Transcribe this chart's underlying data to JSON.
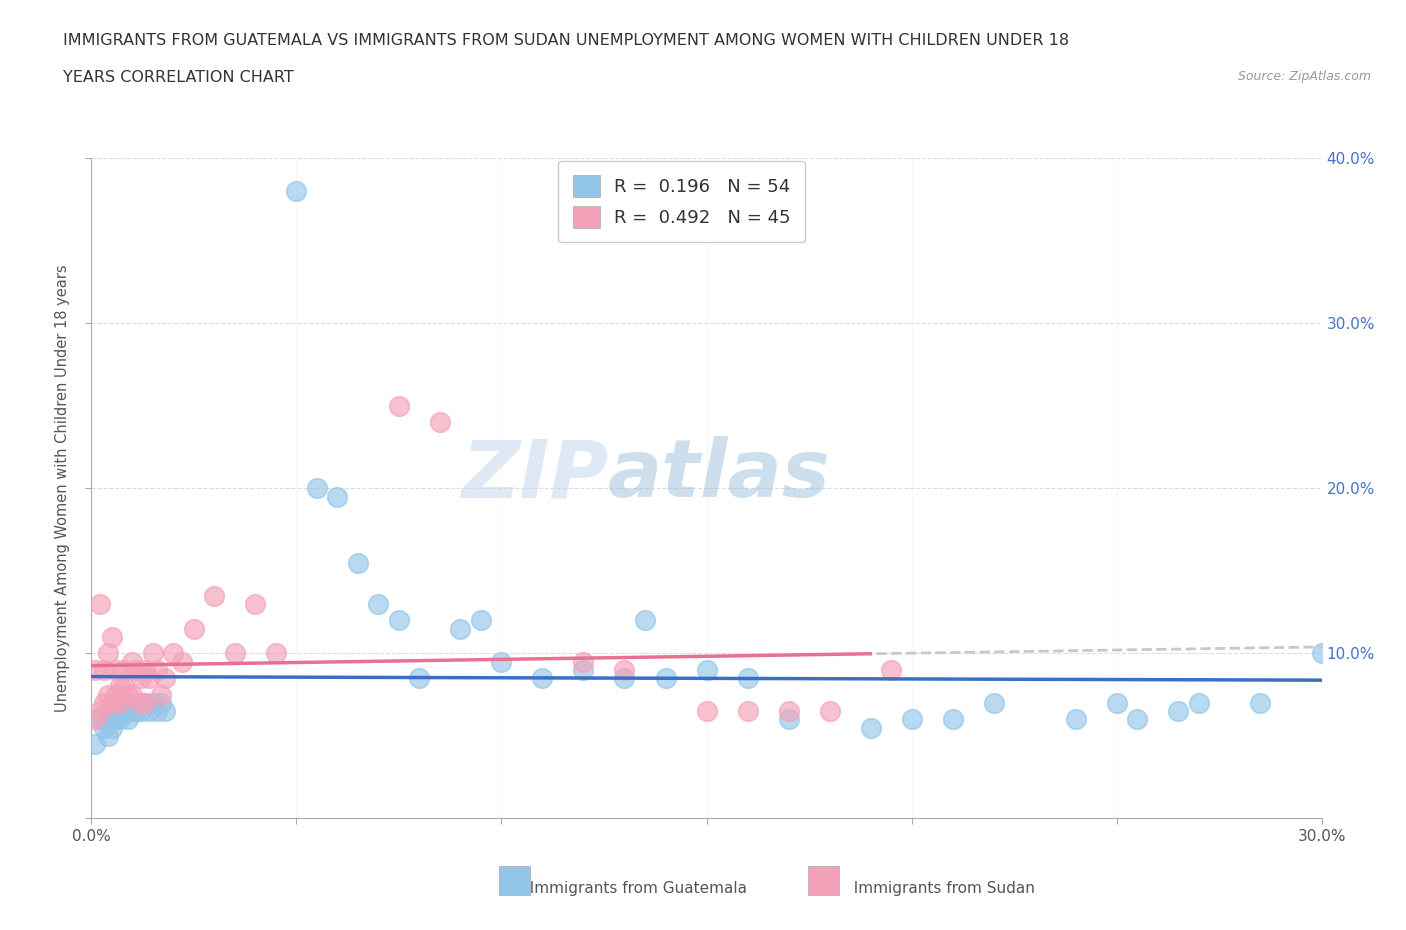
{
  "title_line1": "IMMIGRANTS FROM GUATEMALA VS IMMIGRANTS FROM SUDAN UNEMPLOYMENT AMONG WOMEN WITH CHILDREN UNDER 18",
  "title_line2": "YEARS CORRELATION CHART",
  "source": "Source: ZipAtlas.com",
  "ylabel": "Unemployment Among Women with Children Under 18 years",
  "xlim": [
    0.0,
    0.3
  ],
  "ylim": [
    0.0,
    0.4
  ],
  "xticks": [
    0.0,
    0.05,
    0.1,
    0.15,
    0.2,
    0.25,
    0.3
  ],
  "yticks": [
    0.0,
    0.1,
    0.2,
    0.3,
    0.4
  ],
  "R_guatemala": 0.196,
  "N_guatemala": 54,
  "R_sudan": 0.492,
  "N_sudan": 45,
  "color_guatemala": "#92C5E8",
  "color_sudan": "#F4A0B8",
  "line_color_guatemala": "#3A6FC4",
  "line_color_sudan": "#E87090",
  "line_color_sudan_dashed": "#C8C8C8",
  "watermark_text": "ZIPatlas",
  "guatemala_x": [
    0.001,
    0.002,
    0.003,
    0.004,
    0.004,
    0.005,
    0.005,
    0.006,
    0.006,
    0.007,
    0.007,
    0.008,
    0.008,
    0.009,
    0.009,
    0.01,
    0.01,
    0.011,
    0.012,
    0.013,
    0.014,
    0.015,
    0.016,
    0.017,
    0.018,
    0.05,
    0.055,
    0.06,
    0.065,
    0.07,
    0.075,
    0.08,
    0.09,
    0.095,
    0.1,
    0.11,
    0.12,
    0.13,
    0.135,
    0.14,
    0.15,
    0.16,
    0.17,
    0.19,
    0.2,
    0.21,
    0.22,
    0.24,
    0.25,
    0.255,
    0.265,
    0.27,
    0.285,
    0.3
  ],
  "guatemala_y": [
    0.045,
    0.06,
    0.055,
    0.065,
    0.05,
    0.06,
    0.055,
    0.065,
    0.06,
    0.065,
    0.06,
    0.065,
    0.07,
    0.065,
    0.06,
    0.07,
    0.065,
    0.065,
    0.065,
    0.07,
    0.065,
    0.07,
    0.065,
    0.07,
    0.065,
    0.38,
    0.2,
    0.195,
    0.155,
    0.13,
    0.12,
    0.085,
    0.115,
    0.12,
    0.095,
    0.085,
    0.09,
    0.085,
    0.12,
    0.085,
    0.09,
    0.085,
    0.06,
    0.055,
    0.06,
    0.06,
    0.07,
    0.06,
    0.07,
    0.06,
    0.065,
    0.07,
    0.07,
    0.1
  ],
  "sudan_x": [
    0.001,
    0.001,
    0.002,
    0.002,
    0.003,
    0.003,
    0.004,
    0.004,
    0.005,
    0.005,
    0.006,
    0.006,
    0.007,
    0.007,
    0.008,
    0.008,
    0.009,
    0.01,
    0.01,
    0.011,
    0.012,
    0.012,
    0.013,
    0.013,
    0.014,
    0.015,
    0.016,
    0.017,
    0.018,
    0.02,
    0.022,
    0.025,
    0.03,
    0.035,
    0.04,
    0.045,
    0.075,
    0.085,
    0.12,
    0.13,
    0.15,
    0.16,
    0.17,
    0.18,
    0.195
  ],
  "sudan_y": [
    0.06,
    0.09,
    0.065,
    0.13,
    0.07,
    0.09,
    0.075,
    0.1,
    0.07,
    0.11,
    0.075,
    0.09,
    0.08,
    0.07,
    0.08,
    0.09,
    0.075,
    0.095,
    0.075,
    0.09,
    0.085,
    0.07,
    0.09,
    0.07,
    0.085,
    0.1,
    0.09,
    0.075,
    0.085,
    0.1,
    0.095,
    0.115,
    0.135,
    0.1,
    0.13,
    0.1,
    0.25,
    0.24,
    0.095,
    0.09,
    0.065,
    0.065,
    0.065,
    0.065,
    0.09
  ],
  "background_color": "#FFFFFF",
  "grid_color": "#DDDDDD"
}
